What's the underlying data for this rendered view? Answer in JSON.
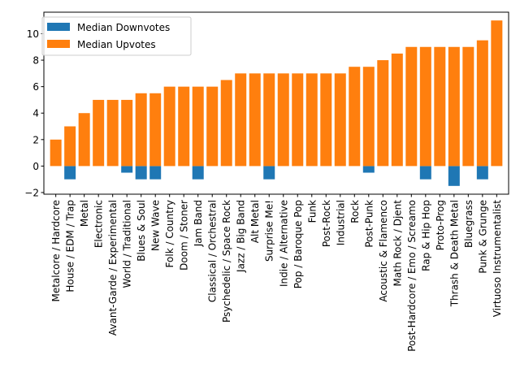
{
  "chart_data": {
    "type": "bar",
    "categories": [
      "Metalcore / Hardcore",
      "House / EDM / Trap",
      "Metal",
      "Electronic",
      "Avant-Garde / Experimental",
      "World / Traditional",
      "Blues & Soul",
      "New Wave",
      "Folk / Country",
      "Doom / Stoner",
      "Jam Band",
      "Classical / Orchestral",
      "Psychedelic / Space Rock",
      "Jazz / Big Band",
      "Alt Metal",
      "Surprise Me!",
      "Indie / Alternative",
      "Pop / Baroque Pop",
      "Funk",
      "Post-Rock",
      "Industrial",
      "Rock",
      "Post-Punk",
      "Acoustic & Flamenco",
      "Math Rock / Djent",
      "Post-Hardcore / Emo / Screamo",
      "Rap & Hip Hop",
      "Proto-Prog",
      "Thrash & Death Metal",
      "Bluegrass",
      "Punk & Grunge",
      "Virtuoso Instrumentalist"
    ],
    "series": [
      {
        "name": "Median Downvotes",
        "color": "#1f77b4",
        "values": [
          0,
          -1,
          0,
          0,
          0,
          -0.5,
          -1,
          -1,
          0,
          0,
          -1,
          0,
          0,
          0,
          0,
          -1,
          0,
          0,
          0,
          0,
          0,
          0,
          -0.5,
          0,
          0,
          0,
          -1,
          0,
          -1.5,
          0,
          -1,
          0
        ]
      },
      {
        "name": "Median Upvotes",
        "color": "#ff7f0e",
        "values": [
          2,
          3,
          4,
          5,
          5,
          5,
          5.5,
          5.5,
          6,
          6,
          6,
          6,
          6.5,
          7,
          7,
          7,
          7,
          7,
          7,
          7,
          7,
          7.5,
          7.5,
          8,
          8.5,
          9,
          9,
          9,
          9,
          9,
          9.5,
          11
        ]
      }
    ],
    "yticks": [
      "−2",
      "0",
      "2",
      "4",
      "6",
      "8",
      "10"
    ],
    "ylim": [
      -2.125,
      11.625
    ],
    "legend_position": "upper-left",
    "grid": false
  }
}
